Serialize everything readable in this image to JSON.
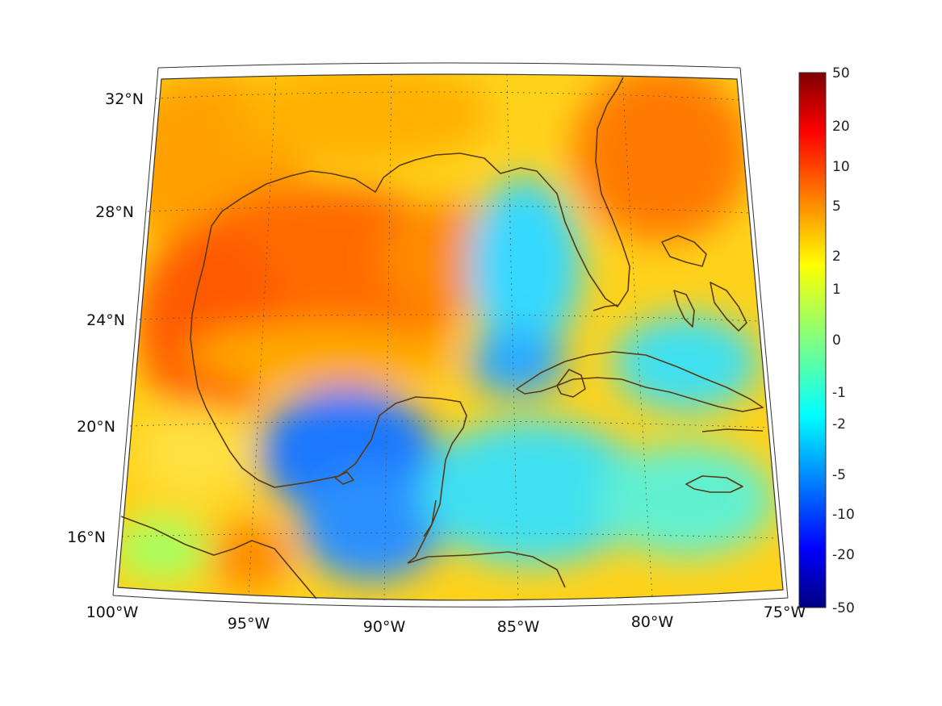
{
  "map": {
    "longitude_ticks": [
      "100°W",
      "95°W",
      "90°W",
      "85°W",
      "80°W",
      "75°W"
    ],
    "latitude_ticks": [
      "32°N",
      "28°N",
      "24°N",
      "20°N",
      "16°N"
    ],
    "coastline_color": "#5a3a12",
    "graticule": "dotted"
  },
  "colorbar": {
    "labels": [
      "50",
      "20",
      "10",
      "5",
      "2",
      "1",
      "0",
      "-1",
      "-2",
      "-5",
      "-10",
      "-20",
      "-50"
    ],
    "colormap": "jet",
    "colors": {
      "max": "#7f0000",
      "high": "#ff0000",
      "mid_high": "#ffff00",
      "mid": "#00ffff",
      "low": "#0000ff",
      "min": "#000080"
    }
  }
}
